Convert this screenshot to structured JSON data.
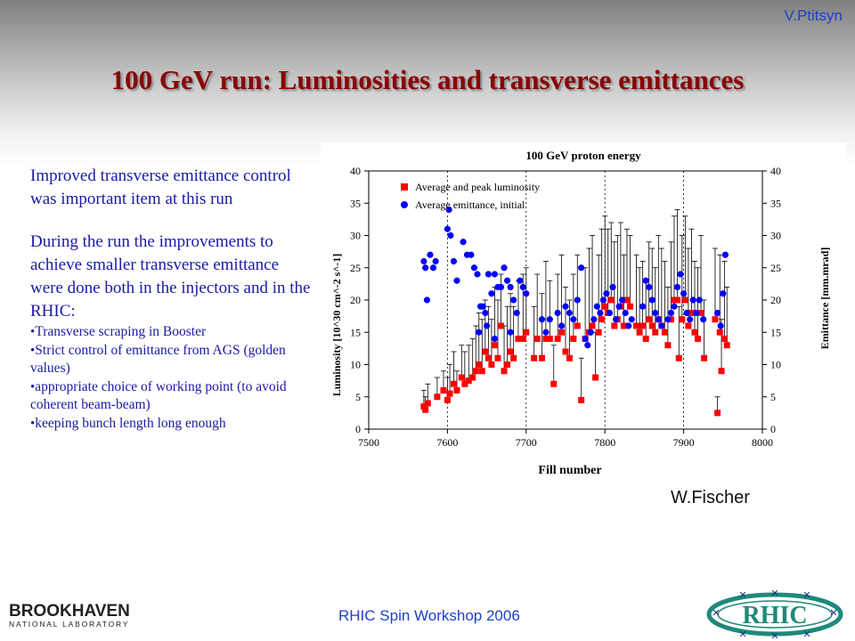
{
  "slide": {
    "author": "V.Ptitsyn",
    "title": "100 GeV run: Luminosities and transverse emittances",
    "paragraph1": "Improved transverse emittance control was important item at this run",
    "paragraph2": "During the run the improvements to achieve smaller transverse emittance were done both in the injectors and in the RHIC:",
    "bullets": [
      "Transverse scraping in Booster",
      "Strict control of emittance from AGS (golden values)",
      "appropriate choice of working point (to avoid coherent beam-beam)",
      "keeping bunch length long enough"
    ],
    "bullet_char": "•",
    "credit": "W.Fischer",
    "footer": "RHIC Spin  Workshop 2006",
    "logo_bnl_line1": "BROOKHAVEN",
    "logo_bnl_line2": "NATIONAL LABORATORY",
    "logo_rhic": "RHIC"
  },
  "chart_data": {
    "type": "scatter",
    "title": "100 GeV proton energy",
    "xlabel": "Fill number",
    "ylabel_left": "Luminosity [10^30 cm^-2 s^-1]",
    "ylabel_right": "Emittance [mm.mrad]",
    "xlim": [
      7500,
      8000
    ],
    "ylim": [
      0,
      40
    ],
    "xticks": [
      "7500",
      "7600",
      "7700",
      "7800",
      "7900",
      "8000"
    ],
    "yticks": [
      "0",
      "5",
      "10",
      "15",
      "20",
      "25",
      "30",
      "35",
      "40"
    ],
    "grid": "dotted vertical at x ticks",
    "legend_position": "top-left",
    "colors": {
      "luminosity": "#ff0000",
      "emittance": "#0000ff",
      "error_bars": "#000000"
    },
    "series": [
      {
        "name": "Average and peak luminosity",
        "marker": "square",
        "points": [
          [
            7570,
            3.5,
            6
          ],
          [
            7572,
            3,
            5
          ],
          [
            7575,
            4,
            7
          ],
          [
            7587,
            5,
            8
          ],
          [
            7595,
            6,
            9
          ],
          [
            7600,
            4.5,
            8
          ],
          [
            7603,
            5.5,
            10
          ],
          [
            7608,
            7,
            12
          ],
          [
            7612,
            6,
            9
          ],
          [
            7618,
            8,
            13
          ],
          [
            7622,
            7,
            12
          ],
          [
            7627,
            7.5,
            13
          ],
          [
            7632,
            8,
            14
          ],
          [
            7636,
            9,
            16
          ],
          [
            7640,
            10,
            18
          ],
          [
            7644,
            9,
            17
          ],
          [
            7648,
            12,
            20
          ],
          [
            7652,
            11,
            19
          ],
          [
            7656,
            10,
            17
          ],
          [
            7660,
            13,
            22
          ],
          [
            7664,
            11,
            20
          ],
          [
            7668,
            16,
            24
          ],
          [
            7672,
            9,
            16
          ],
          [
            7676,
            10,
            19
          ],
          [
            7680,
            12,
            21
          ],
          [
            7684,
            11,
            19
          ],
          [
            7690,
            14,
            23
          ],
          [
            7696,
            14,
            24
          ],
          [
            7700,
            15,
            25
          ],
          [
            7710,
            11,
            19
          ],
          [
            7714,
            14,
            24
          ],
          [
            7720,
            11,
            21
          ],
          [
            7725,
            14,
            26
          ],
          [
            7730,
            14,
            23
          ],
          [
            7735,
            7,
            13
          ],
          [
            7740,
            14,
            24
          ],
          [
            7745,
            15,
            27
          ],
          [
            7750,
            12,
            22
          ],
          [
            7755,
            11,
            20
          ],
          [
            7760,
            14,
            24
          ],
          [
            7765,
            16,
            27
          ],
          [
            7770,
            4.5,
            11
          ],
          [
            7775,
            14,
            25
          ],
          [
            7780,
            15,
            28
          ],
          [
            7784,
            16,
            30
          ],
          [
            7788,
            8,
            15
          ],
          [
            7792,
            15,
            27
          ],
          [
            7796,
            17,
            31
          ],
          [
            7800,
            19,
            33
          ],
          [
            7804,
            18,
            31
          ],
          [
            7808,
            20,
            32
          ],
          [
            7812,
            16,
            29
          ],
          [
            7816,
            17,
            30
          ],
          [
            7820,
            19,
            32
          ],
          [
            7824,
            16,
            27
          ],
          [
            7828,
            20,
            31
          ],
          [
            7832,
            19,
            30
          ],
          [
            7840,
            16,
            27
          ],
          [
            7844,
            15,
            25
          ],
          [
            7848,
            16,
            26
          ],
          [
            7852,
            14,
            23
          ],
          [
            7856,
            17,
            29
          ],
          [
            7860,
            16,
            28
          ],
          [
            7864,
            15,
            25
          ],
          [
            7868,
            17,
            30
          ],
          [
            7872,
            16,
            28
          ],
          [
            7876,
            15,
            26
          ],
          [
            7880,
            13,
            22
          ],
          [
            7884,
            17,
            29
          ],
          [
            7888,
            20,
            33
          ],
          [
            7892,
            20,
            34
          ],
          [
            7894,
            11,
            19
          ],
          [
            7898,
            17,
            30
          ],
          [
            7902,
            20,
            33
          ],
          [
            7906,
            16,
            28
          ],
          [
            7910,
            18,
            31
          ],
          [
            7914,
            15,
            26
          ],
          [
            7918,
            14,
            25
          ],
          [
            7922,
            18,
            30
          ],
          [
            7926,
            11,
            20
          ],
          [
            7940,
            17,
            28
          ],
          [
            7943,
            2.5,
            5
          ],
          [
            7946,
            15,
            27
          ],
          [
            7948,
            9,
            17
          ],
          [
            7952,
            14,
            26
          ],
          [
            7955,
            13,
            22
          ]
        ]
      },
      {
        "name": "Average emittance, initial",
        "marker": "circle",
        "points": [
          [
            7570,
            26
          ],
          [
            7572,
            25
          ],
          [
            7574,
            20
          ],
          [
            7578,
            27
          ],
          [
            7582,
            25
          ],
          [
            7585,
            26
          ],
          [
            7600,
            31
          ],
          [
            7602,
            34
          ],
          [
            7604,
            30
          ],
          [
            7608,
            26
          ],
          [
            7612,
            23
          ],
          [
            7620,
            29
          ],
          [
            7625,
            27
          ],
          [
            7630,
            27
          ],
          [
            7634,
            25
          ],
          [
            7638,
            24
          ],
          [
            7642,
            19
          ],
          [
            7645,
            19
          ],
          [
            7648,
            18
          ],
          [
            7652,
            24
          ],
          [
            7656,
            21
          ],
          [
            7660,
            24
          ],
          [
            7664,
            22
          ],
          [
            7668,
            22
          ],
          [
            7672,
            25
          ],
          [
            7676,
            23
          ],
          [
            7680,
            22
          ],
          [
            7684,
            20
          ],
          [
            7688,
            18
          ],
          [
            7692,
            23
          ],
          [
            7696,
            22
          ],
          [
            7700,
            21
          ],
          [
            7640,
            15
          ],
          [
            7650,
            16
          ],
          [
            7660,
            14
          ],
          [
            7680,
            15
          ],
          [
            7720,
            17
          ],
          [
            7725,
            15
          ],
          [
            7730,
            17
          ],
          [
            7740,
            18
          ],
          [
            7745,
            16
          ],
          [
            7750,
            19
          ],
          [
            7755,
            18
          ],
          [
            7760,
            17
          ],
          [
            7765,
            20
          ],
          [
            7770,
            25
          ],
          [
            7775,
            14
          ],
          [
            7778,
            13
          ],
          [
            7782,
            15
          ],
          [
            7786,
            17
          ],
          [
            7790,
            19
          ],
          [
            7794,
            18
          ],
          [
            7798,
            20
          ],
          [
            7802,
            21
          ],
          [
            7806,
            18
          ],
          [
            7810,
            22
          ],
          [
            7814,
            17
          ],
          [
            7818,
            19
          ],
          [
            7822,
            20
          ],
          [
            7826,
            18
          ],
          [
            7830,
            16
          ],
          [
            7834,
            17
          ],
          [
            7848,
            19
          ],
          [
            7852,
            23
          ],
          [
            7856,
            22
          ],
          [
            7860,
            20
          ],
          [
            7864,
            18
          ],
          [
            7868,
            17
          ],
          [
            7872,
            16
          ],
          [
            7880,
            17
          ],
          [
            7884,
            18
          ],
          [
            7888,
            19
          ],
          [
            7892,
            22
          ],
          [
            7896,
            24
          ],
          [
            7900,
            21
          ],
          [
            7904,
            18
          ],
          [
            7908,
            17
          ],
          [
            7912,
            20
          ],
          [
            7916,
            18
          ],
          [
            7920,
            20
          ],
          [
            7925,
            17
          ],
          [
            7943,
            18
          ],
          [
            7947,
            16
          ],
          [
            7950,
            21
          ],
          [
            7953,
            27
          ]
        ]
      }
    ]
  }
}
